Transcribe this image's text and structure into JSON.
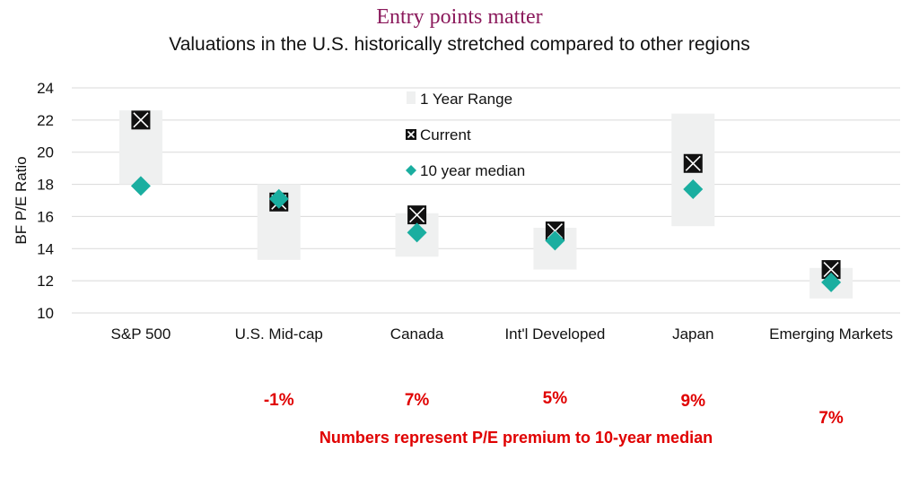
{
  "title": "Entry points matter",
  "subtitle": "Valuations in the U.S. historically stretched compared to other regions",
  "footnote": "Numbers represent P/E premium to 10-year median",
  "colors": {
    "title": "#8b1a5c",
    "range": "#eff0f0",
    "current": "#111111",
    "median": "#1aaea0",
    "premium": "#e00000"
  },
  "chart_data": {
    "type": "scatter",
    "ylabel": "BF P/E Ratio",
    "xlabel": "",
    "ylim": [
      10,
      24
    ],
    "yticks": [
      "10",
      "12",
      "14",
      "16",
      "18",
      "20",
      "22",
      "24"
    ],
    "grid": true,
    "legend": [
      "1 Year Range",
      "Current",
      "10 year median"
    ],
    "categories": [
      "S&P 500",
      "U.S. Mid-cap",
      "Canada",
      "Int'l Developed",
      "Japan",
      "Emerging Markets"
    ],
    "range_low": [
      18.0,
      13.3,
      13.5,
      12.7,
      15.4,
      10.9
    ],
    "range_high": [
      22.6,
      18.0,
      16.2,
      15.3,
      22.4,
      12.8
    ],
    "current": [
      22.0,
      16.9,
      16.1,
      15.1,
      19.3,
      12.7
    ],
    "median": [
      17.9,
      17.1,
      15.0,
      14.5,
      17.7,
      11.9
    ],
    "premium_labels": [
      "",
      "-1%",
      "7%",
      "5%",
      "9%",
      "7%"
    ]
  }
}
